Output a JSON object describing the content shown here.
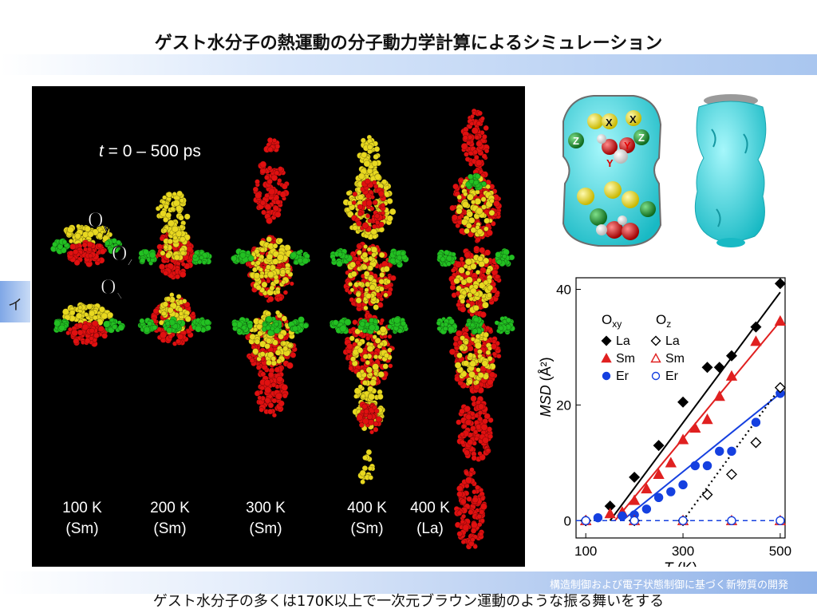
{
  "slide": {
    "title": "ゲスト水分子の熱運動の分子動力学計算によるシミュレーション",
    "side_glyph": "イ",
    "caption": "ゲスト水分子の多くは170K以上で一次元ブラウン運動のような振る舞いをする",
    "footer": "構造制御および電子状態制御に基づく新物質の開発"
  },
  "simulation": {
    "time_label_t": "t",
    "time_label_rest": " = 0 – 500 ps",
    "o_labels": [
      {
        "base": "O",
        "sub": "y"
      },
      {
        "base": "O",
        "sub": "z"
      },
      {
        "base": "O",
        "sub": "x"
      }
    ],
    "conditions": [
      {
        "temp": "100 K",
        "element": "(Sm)"
      },
      {
        "temp": "200 K",
        "element": "(Sm)"
      },
      {
        "temp": "300 K",
        "element": "(Sm)"
      },
      {
        "temp": "400 K",
        "element": "(Sm)"
      },
      {
        "temp": "400 K",
        "element": "(La)"
      }
    ],
    "colors": {
      "oxy_red": "#e01010",
      "yellow": "#e8d820",
      "green": "#22c022",
      "background": "#000000"
    }
  },
  "structure": {
    "labels": [
      "X",
      "X",
      "Z",
      "Z",
      "Y",
      "Y"
    ],
    "cavity_color": "#38e4ef"
  },
  "chart_data": {
    "type": "scatter",
    "xlabel": "T (K)",
    "ylabel": "MSD (Å²)",
    "xlim": [
      80,
      510
    ],
    "ylim": [
      -3,
      42
    ],
    "xticks": [
      100,
      300,
      500
    ],
    "yticks": [
      0,
      20,
      40
    ],
    "legend_headers": [
      "O",
      "xy",
      "O",
      "z"
    ],
    "legend_entries": [
      "La",
      "Sm",
      "Er"
    ],
    "series": [
      {
        "name": "La",
        "group": "Oxy",
        "color": "#000000",
        "marker": "diamond",
        "filled": true,
        "x": [
          100,
          150,
          200,
          250,
          300,
          350,
          375,
          400,
          450,
          500
        ],
        "y": [
          0,
          2.5,
          7.5,
          13,
          20.5,
          26.5,
          26.5,
          28.5,
          33.5,
          41
        ]
      },
      {
        "name": "Sm",
        "group": "Oxy",
        "color": "#e02020",
        "marker": "triangle",
        "filled": true,
        "x": [
          100,
          150,
          175,
          200,
          225,
          250,
          275,
          300,
          325,
          350,
          375,
          400,
          450,
          500
        ],
        "y": [
          0,
          1.2,
          1.5,
          3.5,
          5.5,
          8,
          10,
          14,
          16,
          17.5,
          21.5,
          25,
          31,
          34.5
        ]
      },
      {
        "name": "Er",
        "group": "Oxy",
        "color": "#1540e0",
        "marker": "circle",
        "filled": true,
        "x": [
          100,
          125,
          175,
          200,
          225,
          250,
          275,
          300,
          325,
          350,
          375,
          400,
          450,
          500
        ],
        "y": [
          0,
          0.5,
          0.8,
          1,
          2,
          4,
          5,
          6.2,
          9.5,
          9.5,
          12,
          12,
          17,
          22
        ]
      },
      {
        "name": "La",
        "group": "Oz",
        "color": "#000000",
        "marker": "diamond",
        "filled": false,
        "x": [
          100,
          200,
          300,
          350,
          400,
          450,
          500
        ],
        "y": [
          0,
          0,
          0,
          4.5,
          8,
          13.5,
          23
        ]
      },
      {
        "name": "Sm",
        "group": "Oz",
        "color": "#e02020",
        "marker": "triangle",
        "filled": false,
        "x": [
          100,
          200,
          300,
          400,
          500
        ],
        "y": [
          0,
          0,
          0,
          0,
          0
        ]
      },
      {
        "name": "Er",
        "group": "Oz",
        "color": "#1540e0",
        "marker": "circle",
        "filled": false,
        "x": [
          100,
          200,
          300,
          400,
          500
        ],
        "y": [
          0,
          0,
          0,
          0,
          0
        ]
      }
    ],
    "fit_lines": [
      {
        "series": "La",
        "group": "Oxy",
        "color": "#000000",
        "style": "solid",
        "x": [
          150,
          500
        ],
        "y": [
          0,
          39.5
        ]
      },
      {
        "series": "Sm",
        "group": "Oxy",
        "color": "#e02020",
        "style": "solid",
        "x": [
          160,
          500
        ],
        "y": [
          0,
          34.5
        ]
      },
      {
        "series": "Er",
        "group": "Oxy",
        "color": "#1540e0",
        "style": "solid",
        "x": [
          175,
          500
        ],
        "y": [
          0,
          22
        ]
      },
      {
        "series": "La",
        "group": "Oz",
        "color": "#000000",
        "style": "dotted",
        "x": [
          300,
          500
        ],
        "y": [
          0,
          23
        ]
      },
      {
        "series": "Oz baseline",
        "group": "Oz",
        "color": "#1540e0",
        "style": "dashed",
        "x": [
          80,
          500
        ],
        "y": [
          0,
          0
        ]
      }
    ]
  }
}
